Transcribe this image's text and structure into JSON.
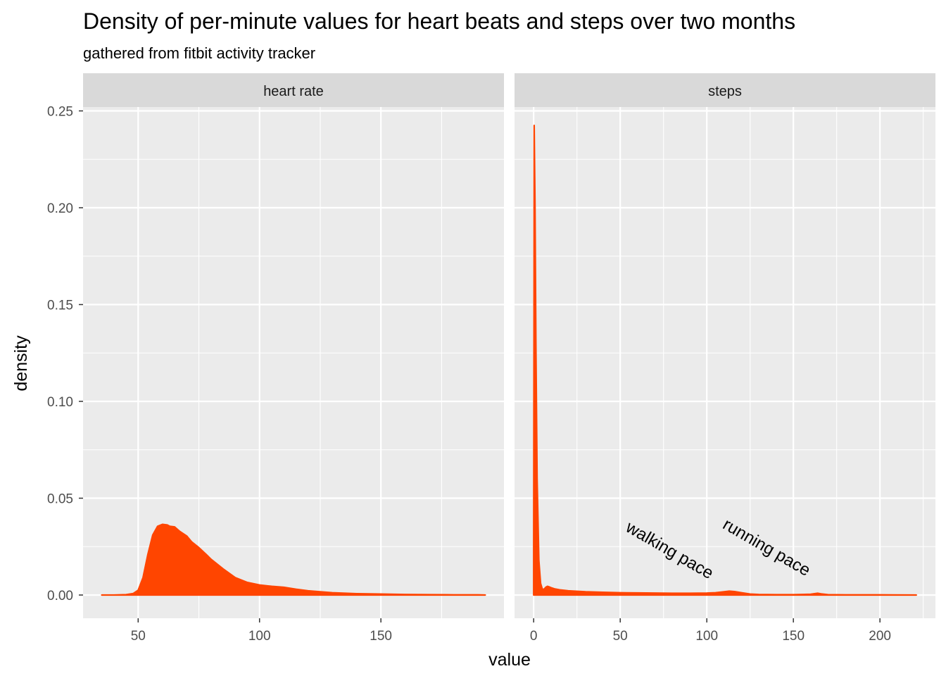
{
  "chart_data": {
    "type": "area",
    "title": "Density of per-minute values for heart beats and steps over two months",
    "subtitle": "gathered from fitbit activity tracker",
    "xlabel": "value",
    "ylabel": "density",
    "fill_color": "#FF4500",
    "ylim": [
      -0.012,
      0.252
    ],
    "y_ticks": [
      0,
      0.05,
      0.1,
      0.15,
      0.2,
      0.25
    ],
    "y_tick_labels": [
      "0.00",
      "0.05",
      "0.10",
      "0.15",
      "0.20",
      "0.25"
    ],
    "panels": [
      {
        "strip": "heart rate",
        "xlim": [
          27.3,
          200.7
        ],
        "x_ticks": [
          50,
          100,
          150
        ],
        "x_tick_labels": [
          "50",
          "100",
          "150"
        ],
        "x_minor": [
          75,
          125,
          175
        ],
        "x": [
          35,
          40,
          45,
          48,
          50,
          52,
          54,
          56,
          58,
          60,
          62,
          63,
          65,
          67,
          70,
          72,
          75,
          78,
          80,
          85,
          90,
          95,
          100,
          105,
          110,
          115,
          120,
          130,
          140,
          150,
          160,
          170,
          180,
          190,
          193
        ],
        "y": [
          0,
          0,
          0.0002,
          0.0008,
          0.0025,
          0.009,
          0.021,
          0.031,
          0.0355,
          0.0365,
          0.0362,
          0.0355,
          0.0352,
          0.033,
          0.0305,
          0.0275,
          0.0245,
          0.021,
          0.0185,
          0.0135,
          0.009,
          0.0065,
          0.0052,
          0.0045,
          0.004,
          0.003,
          0.0022,
          0.0012,
          0.0007,
          0.0005,
          0.0003,
          0.0002,
          0.0001,
          0.0001,
          0
        ]
      },
      {
        "strip": "steps",
        "xlim": [
          -11.05,
          232.05
        ],
        "x_ticks": [
          0,
          50,
          100,
          150,
          200
        ],
        "x_tick_labels": [
          "0",
          "50",
          "100",
          "150",
          "200"
        ],
        "x_minor": [
          25,
          75,
          125,
          175,
          225
        ],
        "x": [
          0,
          0.3,
          0.8,
          1.3,
          2,
          3,
          4,
          5,
          6,
          7,
          8,
          9,
          10,
          12,
          15,
          20,
          30,
          40,
          50,
          60,
          70,
          80,
          90,
          100,
          105,
          110,
          113,
          116,
          120,
          125,
          130,
          140,
          150,
          160,
          164,
          166,
          170,
          180,
          200,
          221
        ],
        "y": [
          0.025,
          0.2425,
          0.2,
          0.13,
          0.06,
          0.018,
          0.006,
          0.003,
          0.003,
          0.004,
          0.0045,
          0.0042,
          0.0038,
          0.0032,
          0.0027,
          0.0022,
          0.0017,
          0.0014,
          0.0012,
          0.0011,
          0.001,
          0.0009,
          0.0009,
          0.001,
          0.0012,
          0.0017,
          0.002,
          0.0018,
          0.0012,
          0.0005,
          0.0003,
          0.0002,
          0.0002,
          0.0004,
          0.0009,
          0.0006,
          0.0002,
          0.0001,
          0.0001,
          0
        ]
      }
    ],
    "annotations": [
      {
        "panel": 1,
        "text": "walking pace",
        "x": 77,
        "y": 0.0207,
        "angle": 30
      },
      {
        "panel": 1,
        "text": "running pace",
        "x": 133,
        "y": 0.0222,
        "angle": 30
      }
    ]
  }
}
